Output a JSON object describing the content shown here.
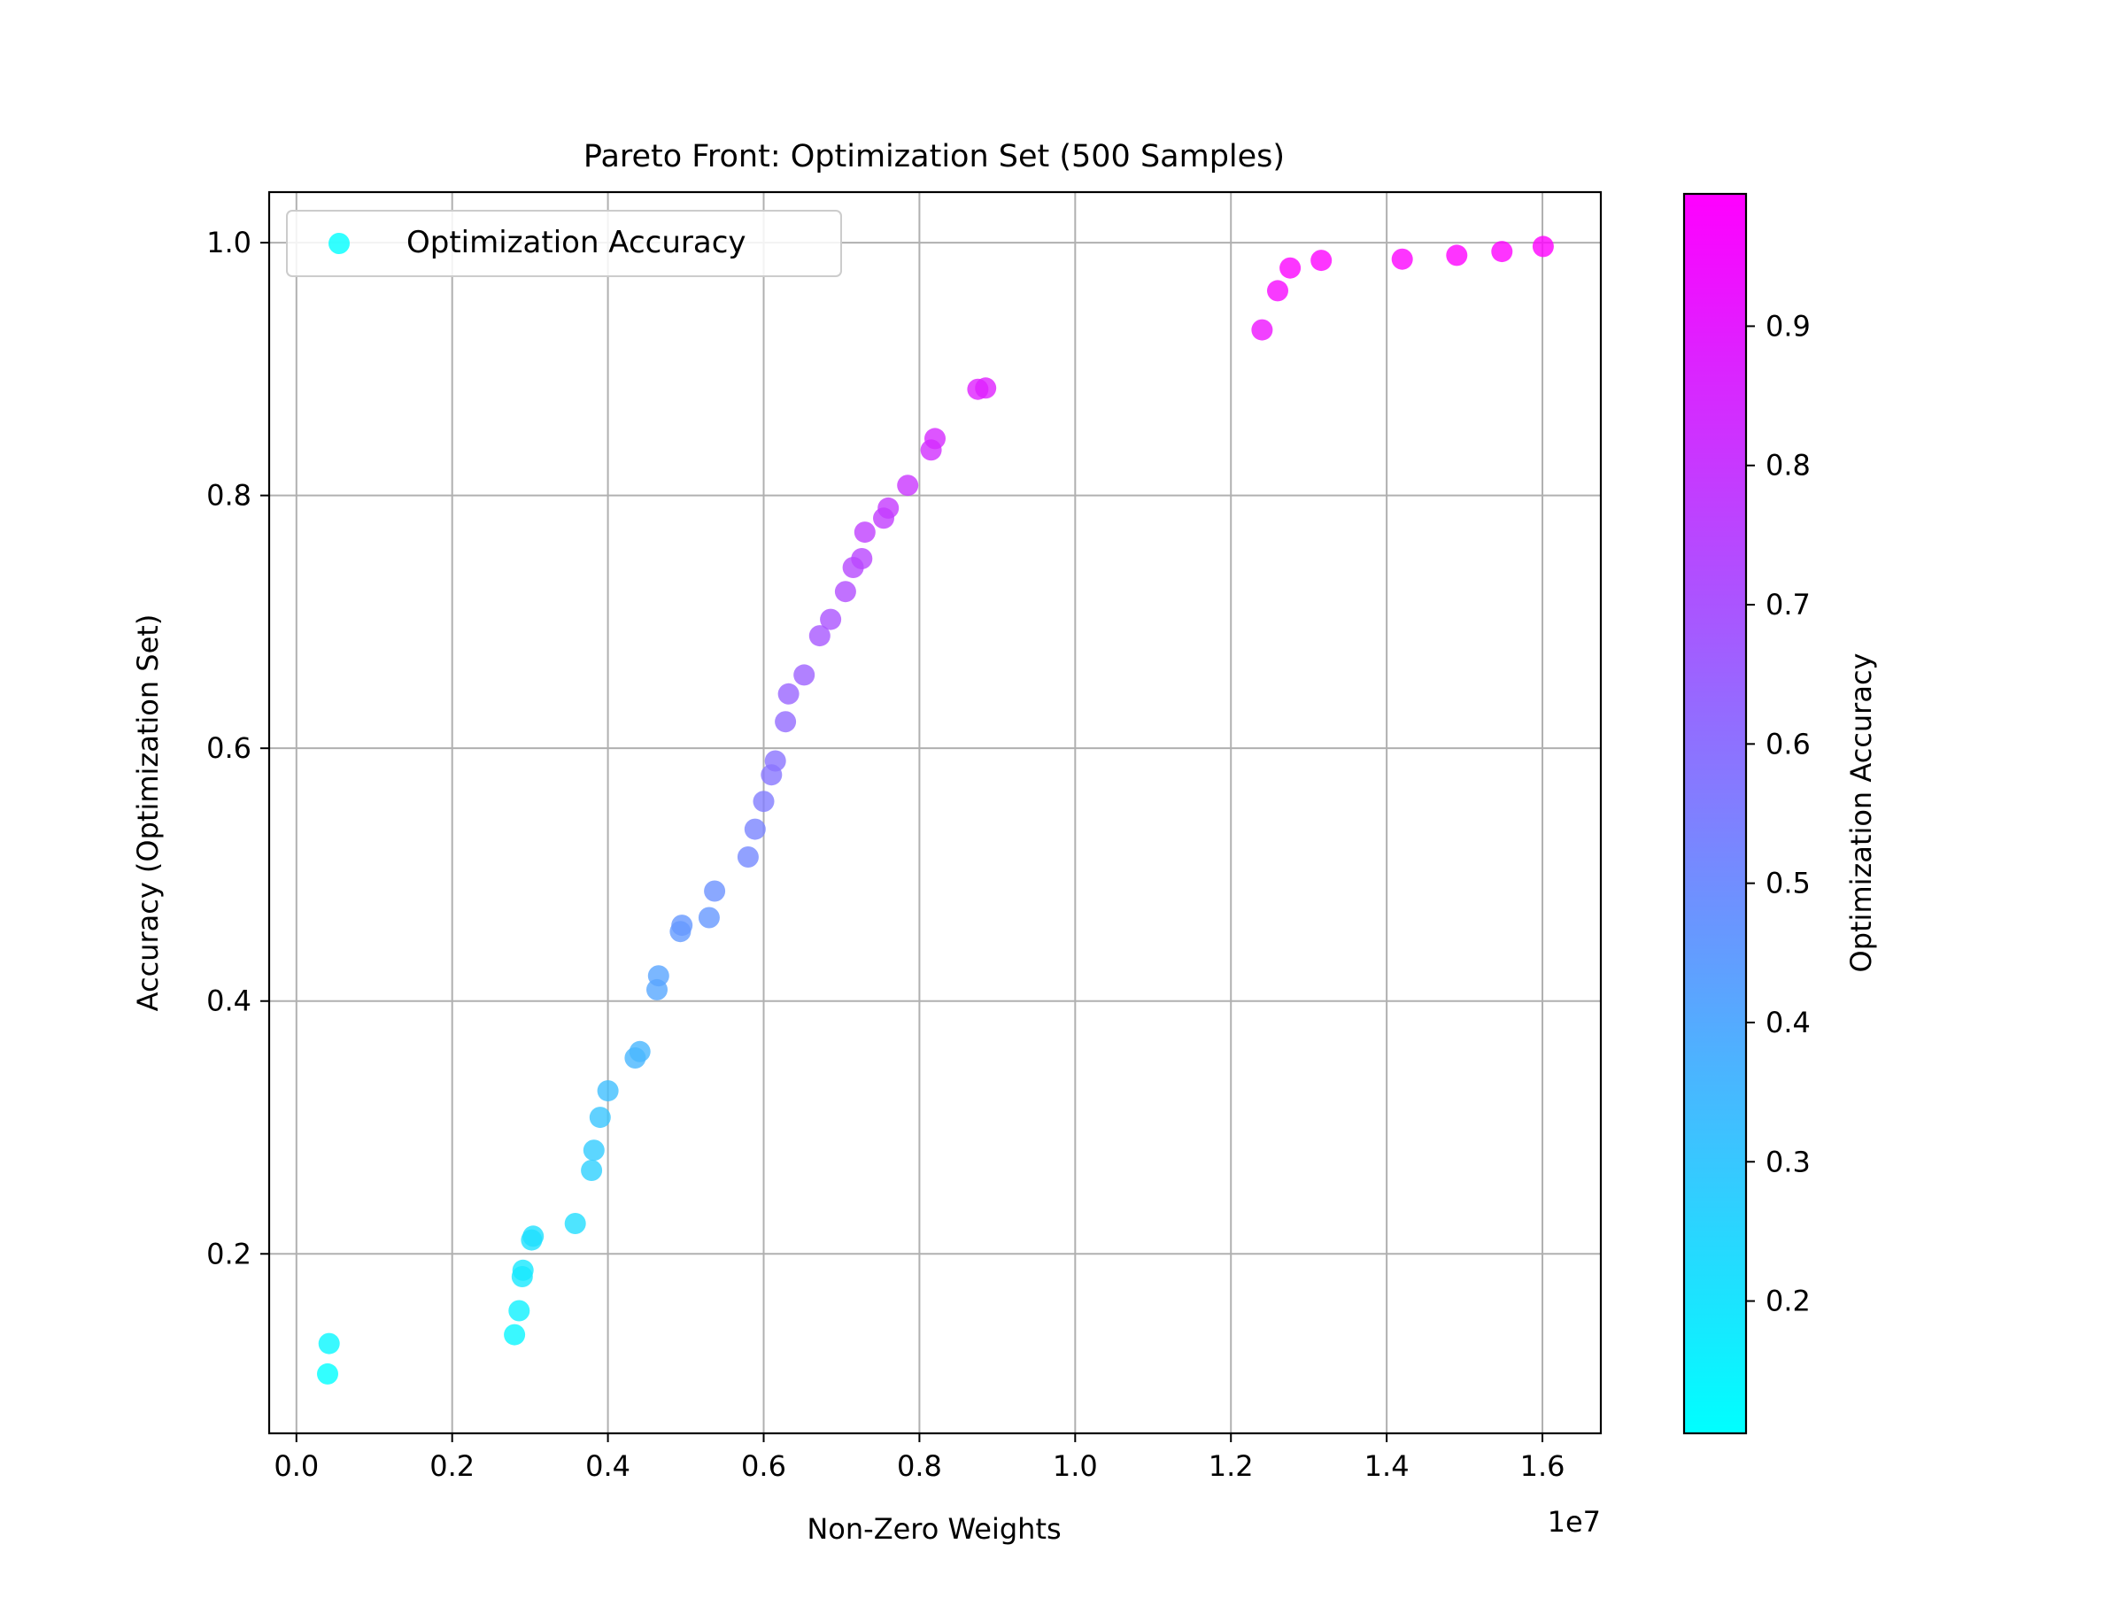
{
  "chart_data": {
    "type": "scatter",
    "title": "Pareto Front: Optimization Set (500 Samples)",
    "xlabel": "Non-Zero Weights",
    "ylabel": "Accuracy (Optimization Set)",
    "x_offset_label": "1e7",
    "xlim": [
      -0.035,
      1.675
    ],
    "ylim": [
      0.058,
      1.04
    ],
    "xticks": [
      0.0,
      0.2,
      0.4,
      0.6,
      0.8,
      1.0,
      1.2,
      1.4,
      1.6
    ],
    "xtick_labels": [
      "0.0",
      "0.2",
      "0.4",
      "0.6",
      "0.8",
      "1.0",
      "1.2",
      "1.4",
      "1.6"
    ],
    "yticks": [
      0.2,
      0.4,
      0.6,
      0.8,
      1.0
    ],
    "ytick_labels": [
      "0.2",
      "0.4",
      "0.6",
      "0.8",
      "1.0"
    ],
    "grid": true,
    "legend": {
      "position": "upper-left",
      "entries": [
        "Optimization Accuracy"
      ]
    },
    "colorbar": {
      "label": "Optimization Accuracy",
      "colormap": "cool",
      "range": [
        0.105,
        0.995
      ],
      "ticks": [
        0.2,
        0.3,
        0.4,
        0.5,
        0.6,
        0.7,
        0.8,
        0.9
      ],
      "tick_labels": [
        "0.2",
        "0.3",
        "0.4",
        "0.5",
        "0.6",
        "0.7",
        "0.8",
        "0.9"
      ],
      "color_low": "#00ffff",
      "color_high": "#ff00ff"
    },
    "series": [
      {
        "name": "Optimization Accuracy",
        "points": [
          [
            0.04,
            0.105
          ],
          [
            0.042,
            0.129
          ],
          [
            0.28,
            0.136
          ],
          [
            0.286,
            0.155
          ],
          [
            0.29,
            0.182
          ],
          [
            0.291,
            0.187
          ],
          [
            0.302,
            0.211
          ],
          [
            0.304,
            0.214
          ],
          [
            0.358,
            0.224
          ],
          [
            0.379,
            0.266
          ],
          [
            0.382,
            0.282
          ],
          [
            0.39,
            0.308
          ],
          [
            0.4,
            0.329
          ],
          [
            0.435,
            0.355
          ],
          [
            0.441,
            0.36
          ],
          [
            0.463,
            0.409
          ],
          [
            0.465,
            0.42
          ],
          [
            0.493,
            0.455
          ],
          [
            0.495,
            0.46
          ],
          [
            0.53,
            0.466
          ],
          [
            0.537,
            0.487
          ],
          [
            0.58,
            0.514
          ],
          [
            0.589,
            0.536
          ],
          [
            0.6,
            0.558
          ],
          [
            0.61,
            0.579
          ],
          [
            0.615,
            0.59
          ],
          [
            0.628,
            0.621
          ],
          [
            0.632,
            0.643
          ],
          [
            0.652,
            0.658
          ],
          [
            0.672,
            0.689
          ],
          [
            0.686,
            0.702
          ],
          [
            0.705,
            0.724
          ],
          [
            0.715,
            0.743
          ],
          [
            0.726,
            0.75
          ],
          [
            0.73,
            0.771
          ],
          [
            0.754,
            0.782
          ],
          [
            0.76,
            0.79
          ],
          [
            0.785,
            0.808
          ],
          [
            0.815,
            0.836
          ],
          [
            0.82,
            0.845
          ],
          [
            0.875,
            0.884
          ],
          [
            0.885,
            0.885
          ],
          [
            1.24,
            0.931
          ],
          [
            1.26,
            0.962
          ],
          [
            1.276,
            0.98
          ],
          [
            1.316,
            0.986
          ],
          [
            1.42,
            0.987
          ],
          [
            1.49,
            0.99
          ],
          [
            1.548,
            0.993
          ],
          [
            1.601,
            0.997
          ]
        ]
      }
    ]
  }
}
